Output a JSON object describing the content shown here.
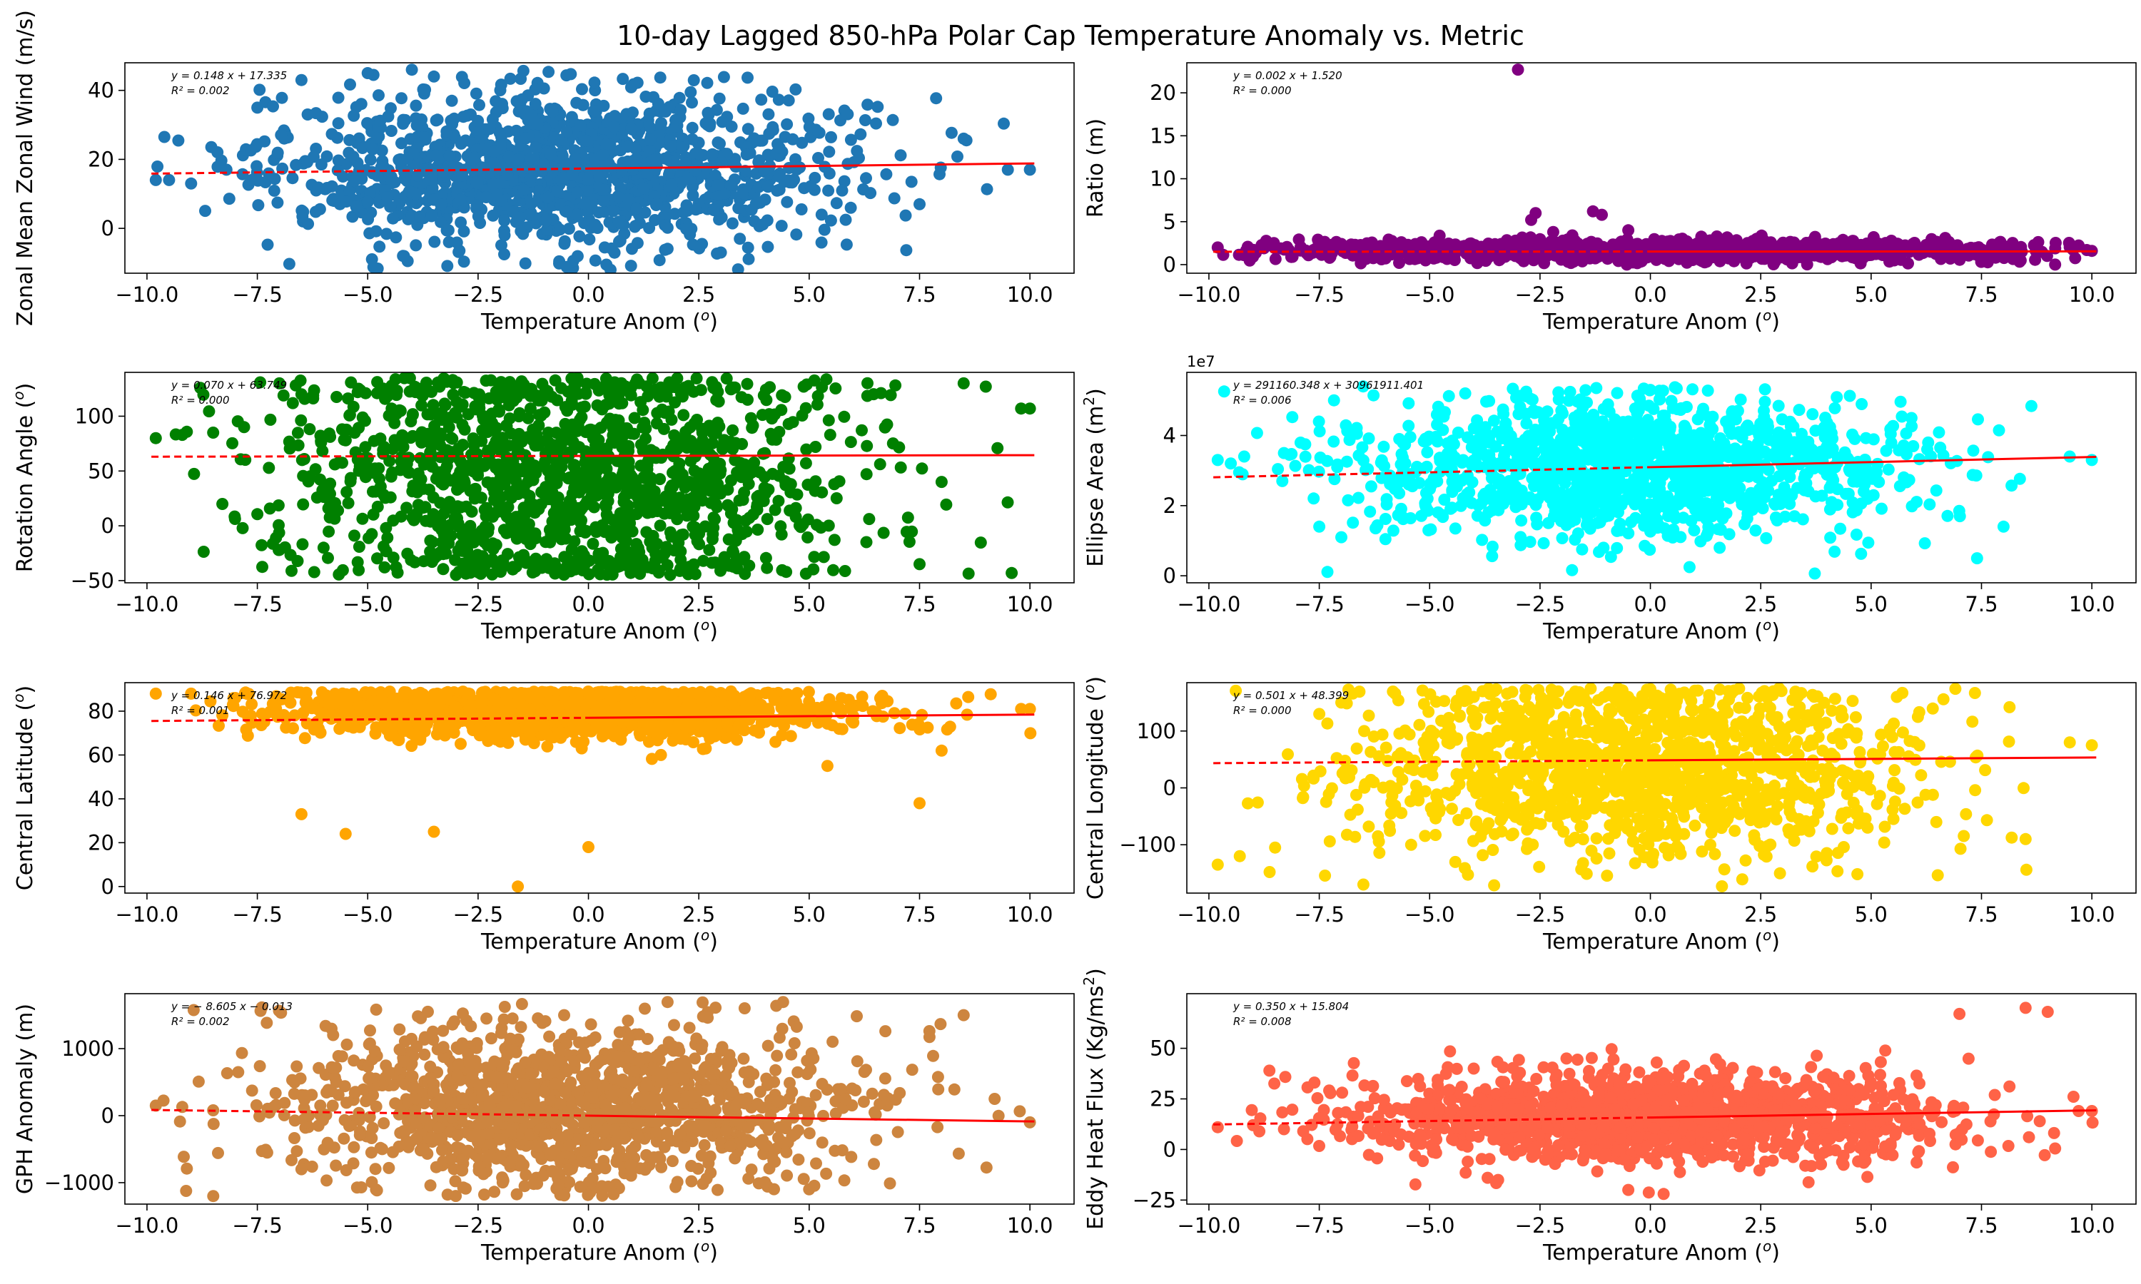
{
  "figure": {
    "title": "10-day Lagged 850-hPa Polar Cap Temperature Anomaly vs. Metric"
  },
  "chart_data": [
    {
      "type": "scatter",
      "color": "#1f77b4",
      "xlabel": "Temperature Anom (o)",
      "ylabel": "Zonal Mean Zonal Wind (m/s)",
      "xlim": [
        -10.5,
        11
      ],
      "ylim": [
        -13,
        48
      ],
      "xticks": [
        -10.0,
        -7.5,
        -5.0,
        -2.5,
        0.0,
        2.5,
        5.0,
        7.5,
        10.0
      ],
      "xtick_labels": [
        "−10.0",
        "−7.5",
        "−5.0",
        "−2.5",
        "0.0",
        "2.5",
        "5.0",
        "7.5",
        "10.0"
      ],
      "yticks": [
        0,
        20,
        40
      ],
      "ytick_labels": [
        "0",
        "20",
        "40"
      ],
      "equation": "y = 0.148 x + 17.335",
      "r2": "R² = 0.002",
      "fit": {
        "slope": 0.148,
        "intercept": 17.335
      },
      "cloud": {
        "center_x": -0.5,
        "spread_x": 3.2,
        "center_y": 17,
        "spread_y": 11,
        "band_low": -12,
        "band_high": 46
      },
      "points": [
        [
          -9.8,
          14
        ],
        [
          -9.5,
          14
        ],
        [
          -9,
          13
        ],
        [
          -8.2,
          17
        ],
        [
          -7.5,
          35
        ],
        [
          -6.5,
          43
        ],
        [
          -5,
          45
        ],
        [
          -4,
          46
        ],
        [
          -3.5,
          44
        ],
        [
          8.5,
          26
        ],
        [
          9.5,
          17
        ],
        [
          10,
          17
        ],
        [
          -4.2,
          -8
        ],
        [
          0.5,
          -12
        ],
        [
          3,
          -7
        ],
        [
          7.5,
          7
        ]
      ]
    },
    {
      "type": "scatter",
      "color": "#800080",
      "xlabel": "Temperature Anom (o)",
      "ylabel": "Ratio (m)",
      "xlim": [
        -10.5,
        11
      ],
      "ylim": [
        -1,
        23.5
      ],
      "xticks": [
        -10.0,
        -7.5,
        -5.0,
        -2.5,
        0.0,
        2.5,
        5.0,
        7.5,
        10.0
      ],
      "xtick_labels": [
        "−10.0",
        "−7.5",
        "−5.0",
        "−2.5",
        "0.0",
        "2.5",
        "5.0",
        "7.5",
        "10.0"
      ],
      "yticks": [
        0,
        5,
        10,
        15,
        20
      ],
      "ytick_labels": [
        "0",
        "5",
        "10",
        "15",
        "20"
      ],
      "equation": "y = 0.002 x + 1.520",
      "r2": "R² = 0.000",
      "fit": {
        "slope": 0.002,
        "intercept": 1.52
      },
      "cloud": {
        "center_x": 0,
        "spread_x": 4.2,
        "center_y": 1.6,
        "spread_y": 0.6,
        "band_low": 0,
        "band_high": 3.5
      },
      "points": [
        [
          -3,
          22.7
        ],
        [
          -2.6,
          6
        ],
        [
          -2.7,
          5.2
        ],
        [
          -1.3,
          6.2
        ],
        [
          -1.1,
          5.8
        ],
        [
          -2.2,
          3.8
        ],
        [
          -0.5,
          4
        ],
        [
          -9.8,
          2
        ],
        [
          10,
          1.6
        ],
        [
          -1.8,
          0.2
        ]
      ]
    },
    {
      "type": "scatter",
      "color": "#008000",
      "xlabel": "Temperature Anom (o)",
      "ylabel": "Rotation Angle (o)",
      "xlim": [
        -10.5,
        11
      ],
      "ylim": [
        -52,
        140
      ],
      "xticks": [
        -10.0,
        -7.5,
        -5.0,
        -2.5,
        0.0,
        2.5,
        5.0,
        7.5,
        10.0
      ],
      "xtick_labels": [
        "−10.0",
        "−7.5",
        "−5.0",
        "−2.5",
        "0.0",
        "2.5",
        "5.0",
        "7.5",
        "10.0"
      ],
      "yticks": [
        -50,
        0,
        50,
        100
      ],
      "ytick_labels": [
        "−50",
        "0",
        "50",
        "100"
      ],
      "equation": "y = 0.070 x + 63.749",
      "r2": "R² = 0.000",
      "fit": {
        "slope": 0.07,
        "intercept": 63.749
      },
      "cloud": {
        "center_x": -0.6,
        "spread_x": 3.1,
        "center_y": 45,
        "spread_y": 60,
        "band_low": -45,
        "band_high": 135
      },
      "points": [
        [
          -9.8,
          80
        ],
        [
          -9.2,
          83
        ],
        [
          -8.5,
          85
        ],
        [
          -7.8,
          90
        ],
        [
          -7,
          130
        ],
        [
          -6.5,
          120
        ],
        [
          -6,
          -20
        ],
        [
          -7,
          -22
        ],
        [
          8.5,
          130
        ],
        [
          9,
          127
        ],
        [
          9.8,
          107
        ],
        [
          10,
          107
        ],
        [
          8,
          40
        ],
        [
          7.5,
          -35
        ]
      ]
    },
    {
      "type": "scatter",
      "color": "#00ffff",
      "xlabel": "Temperature Anom (o)",
      "ylabel": "Ellipse Area (m2)",
      "offset_text": "1e7",
      "xlim": [
        -10.5,
        11
      ],
      "ylim": [
        -0.2,
        5.8
      ],
      "xticks": [
        -10.0,
        -7.5,
        -5.0,
        -2.5,
        0.0,
        2.5,
        5.0,
        7.5,
        10.0
      ],
      "xtick_labels": [
        "−10.0",
        "−7.5",
        "−5.0",
        "−2.5",
        "0.0",
        "2.5",
        "5.0",
        "7.5",
        "10.0"
      ],
      "yticks": [
        0,
        2,
        4
      ],
      "ytick_labels": [
        "0",
        "2",
        "4"
      ],
      "equation": "y = 291160.348 x + 30961911.401",
      "r2": "R² = 0.006",
      "fit": {
        "slope": 0.0291160348,
        "intercept": 3.0961911401
      },
      "cloud": {
        "center_x": -0.5,
        "spread_x": 3.2,
        "center_y": 3.1,
        "spread_y": 1.0,
        "band_low": 0.05,
        "band_high": 5.4
      },
      "points": [
        [
          -9.8,
          3.3
        ],
        [
          -9.2,
          3.4
        ],
        [
          -8.3,
          3.5
        ],
        [
          -7.5,
          1.4
        ],
        [
          -7,
          1.1
        ],
        [
          9.5,
          3.4
        ],
        [
          10,
          3.3
        ],
        [
          8,
          1.4
        ],
        [
          7.4,
          0.5
        ],
        [
          0,
          5.3
        ]
      ]
    },
    {
      "type": "scatter",
      "color": "#ffa500",
      "xlabel": "Temperature Anom (o)",
      "ylabel": "Central Latitude (o)",
      "xlim": [
        -10.5,
        11
      ],
      "ylim": [
        -3,
        93
      ],
      "xticks": [
        -10.0,
        -7.5,
        -5.0,
        -2.5,
        0.0,
        2.5,
        5.0,
        7.5,
        10.0
      ],
      "xtick_labels": [
        "−10.0",
        "−7.5",
        "−5.0",
        "−2.5",
        "0.0",
        "2.5",
        "5.0",
        "7.5",
        "10.0"
      ],
      "yticks": [
        0,
        20,
        40,
        60,
        80
      ],
      "ytick_labels": [
        "0",
        "20",
        "40",
        "60",
        "80"
      ],
      "equation": "y = 0.146 x + 76.972",
      "r2": "R² = 0.001",
      "fit": {
        "slope": 0.146,
        "intercept": 76.972
      },
      "cloud": {
        "center_x": -0.5,
        "spread_x": 3.2,
        "center_y": 80,
        "spread_y": 6,
        "band_low": 30,
        "band_high": 89
      },
      "points": [
        [
          -9.8,
          88
        ],
        [
          -9,
          88
        ],
        [
          -8,
          86
        ],
        [
          9.8,
          81
        ],
        [
          10,
          81
        ],
        [
          -1.6,
          0
        ],
        [
          -3.5,
          25
        ],
        [
          -5.5,
          24
        ],
        [
          0,
          18
        ],
        [
          -6.5,
          33
        ],
        [
          7.5,
          38
        ],
        [
          8,
          62
        ]
      ]
    },
    {
      "type": "scatter",
      "color": "#ffd700",
      "xlabel": "Temperature Anom (o)",
      "ylabel": "Central Longitude (o)",
      "xlim": [
        -10.5,
        11
      ],
      "ylim": [
        -185,
        185
      ],
      "xticks": [
        -10.0,
        -7.5,
        -5.0,
        -2.5,
        0.0,
        2.5,
        5.0,
        7.5,
        10.0
      ],
      "xtick_labels": [
        "−10.0",
        "−7.5",
        "−5.0",
        "−2.5",
        "0.0",
        "2.5",
        "5.0",
        "7.5",
        "10.0"
      ],
      "yticks": [
        -100,
        0,
        100
      ],
      "ytick_labels": [
        "−100",
        "0",
        "100"
      ],
      "equation": "y = 0.501 x + 48.399",
      "r2": "R² = 0.000",
      "fit": {
        "slope": 0.501,
        "intercept": 48.399
      },
      "cloud": {
        "center_x": -0.4,
        "spread_x": 3.2,
        "center_y": 40,
        "spread_y": 80,
        "band_low": -175,
        "band_high": 175
      },
      "points": [
        [
          -9.8,
          -135
        ],
        [
          -9.3,
          -120
        ],
        [
          -8.5,
          -105
        ],
        [
          -7.5,
          130
        ],
        [
          -7,
          150
        ],
        [
          9.5,
          80
        ],
        [
          10,
          75
        ],
        [
          8.5,
          -90
        ],
        [
          -6.5,
          -170
        ]
      ]
    },
    {
      "type": "scatter",
      "color": "#cd853f",
      "xlabel": "Temperature Anom (o)",
      "ylabel": "GPH Anomaly (m)",
      "xlim": [
        -10.5,
        11
      ],
      "ylim": [
        -1320,
        1820
      ],
      "xticks": [
        -10.0,
        -7.5,
        -5.0,
        -2.5,
        0.0,
        2.5,
        5.0,
        7.5,
        10.0
      ],
      "xtick_labels": [
        "−10.0",
        "−7.5",
        "−5.0",
        "−2.5",
        "0.0",
        "2.5",
        "5.0",
        "7.5",
        "10.0"
      ],
      "yticks": [
        -1000,
        0,
        1000
      ],
      "ytick_labels": [
        "−1000",
        "0",
        "1000"
      ],
      "equation": "y = − 8.605 x − 0.013",
      "r2": "R² = 0.002",
      "fit": {
        "slope": -8.605,
        "intercept": -0.013
      },
      "cloud": {
        "center_x": -0.6,
        "spread_x": 3.2,
        "center_y": 150,
        "spread_y": 600,
        "band_low": -1200,
        "band_high": 1700
      },
      "points": [
        [
          -9.8,
          150
        ],
        [
          -9.2,
          130
        ],
        [
          -8.5,
          80
        ],
        [
          8.5,
          1500
        ],
        [
          9.2,
          250
        ],
        [
          10,
          -100
        ],
        [
          -6.5,
          -800
        ],
        [
          5,
          -1100
        ]
      ]
    },
    {
      "type": "scatter",
      "color": "#ff6347",
      "xlabel": "Temperature Anom (o)",
      "ylabel": "Eddy Heat Flux (Kg/ms2)",
      "xlim": [
        -10.5,
        11
      ],
      "ylim": [
        -27,
        77
      ],
      "xticks": [
        -10.0,
        -7.5,
        -5.0,
        -2.5,
        0.0,
        2.5,
        5.0,
        7.5,
        10.0
      ],
      "xtick_labels": [
        "−10.0",
        "−7.5",
        "−5.0",
        "−2.5",
        "0.0",
        "2.5",
        "5.0",
        "7.5",
        "10.0"
      ],
      "yticks": [
        -25,
        0,
        25,
        50
      ],
      "ytick_labels": [
        "−25",
        "0",
        "25",
        "50"
      ],
      "equation": "y = 0.350 x + 15.804",
      "r2": "R² = 0.008",
      "fit": {
        "slope": 0.35,
        "intercept": 15.804
      },
      "cloud": {
        "center_x": 0,
        "spread_x": 3.3,
        "center_y": 16,
        "spread_y": 11,
        "band_low": -22,
        "band_high": 68
      },
      "points": [
        [
          -9.8,
          11
        ],
        [
          -9,
          12
        ],
        [
          -8.3,
          10
        ],
        [
          8.5,
          70
        ],
        [
          9,
          68
        ],
        [
          7,
          67
        ],
        [
          9.7,
          19
        ],
        [
          10,
          19
        ],
        [
          0.3,
          -22
        ],
        [
          -0.5,
          -20
        ]
      ]
    }
  ]
}
